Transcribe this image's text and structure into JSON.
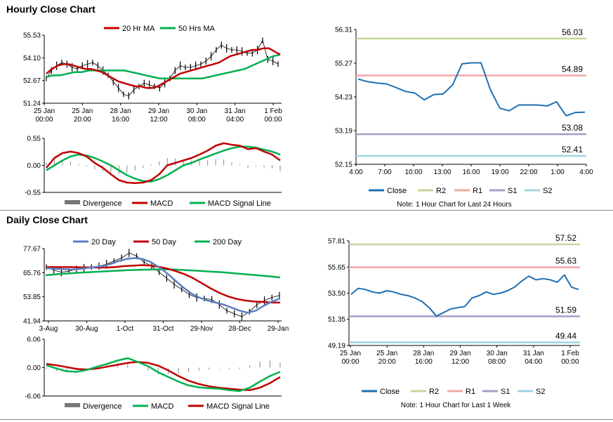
{
  "sections": {
    "hourly_title": "Hourly Close Chart",
    "daily_title": "Daily Close Chart"
  },
  "colors": {
    "ma_short": "#c00000",
    "ma_long": "#00b050",
    "ma_mid": "#c00000",
    "ma_200": "#00b050",
    "ma_20": "#5b7fbf",
    "close": "#1f6fb2",
    "r2": "#c3d69b",
    "r1": "#f2a7a7",
    "s1": "#a89cc8",
    "s2": "#9fd3e0",
    "divergence": "#888888",
    "price": "#000000"
  },
  "chart_data": [
    {
      "id": "hourly_price",
      "type": "line",
      "title": "",
      "legend": [
        "20 Hr MA",
        "50 Hrs MA"
      ],
      "ylim": [
        51.24,
        55.53
      ],
      "yticks": [
        "55.53",
        "54.10",
        "52.67",
        "51.24"
      ],
      "xticks": [
        [
          "25 Jan",
          "00:00"
        ],
        [
          "25 Jan",
          "20:00"
        ],
        [
          "28 Jan",
          "16:00"
        ],
        [
          "29 Jan",
          "12:00"
        ],
        [
          "30 Jan",
          "08:00"
        ],
        [
          "31 Jan",
          "04:00"
        ],
        [
          "1 Feb",
          "00:00"
        ]
      ],
      "series": [
        {
          "name": "Price",
          "values": [
            52.8,
            53.3,
            53.6,
            53.8,
            53.7,
            53.5,
            53.4,
            53.6,
            53.7,
            53.8,
            53.6,
            53.3,
            53.0,
            52.6,
            52.2,
            51.8,
            51.7,
            52.1,
            52.3,
            52.5,
            52.4,
            52.3,
            52.2,
            52.5,
            52.8,
            53.3,
            53.6,
            53.5,
            53.5,
            53.6,
            53.7,
            53.9,
            54.2,
            54.6,
            54.9,
            54.7,
            54.6,
            54.6,
            54.5,
            54.4,
            54.4,
            54.6,
            55.2,
            54.0,
            53.9,
            53.7
          ]
        },
        {
          "name": "20 Hr MA",
          "values": [
            53.1,
            53.4,
            53.6,
            53.7,
            53.7,
            53.6,
            53.5,
            53.4,
            53.4,
            53.3,
            53.2,
            53.0,
            52.8,
            52.6,
            52.5,
            52.4,
            52.3,
            52.3,
            52.2,
            52.2,
            52.3,
            52.5,
            52.7,
            52.9,
            53.1,
            53.2,
            53.3,
            53.4,
            53.5,
            53.6,
            53.7,
            53.8,
            54.0,
            54.2,
            54.3,
            54.4,
            54.5,
            54.6,
            54.6,
            54.7,
            54.7,
            54.5,
            54.3
          ]
        },
        {
          "name": "50 Hrs MA",
          "values": [
            52.9,
            53.0,
            53.0,
            53.1,
            53.2,
            53.2,
            53.3,
            53.3,
            53.3,
            53.3,
            53.3,
            53.3,
            53.2,
            53.1,
            53.0,
            52.9,
            52.8,
            52.8,
            52.8,
            52.8,
            52.8,
            52.8,
            52.8,
            52.9,
            53.0,
            53.1,
            53.2,
            53.3,
            53.4,
            53.6,
            53.8,
            54.0,
            54.2,
            54.3
          ]
        }
      ]
    },
    {
      "id": "hourly_macd",
      "type": "line",
      "legend": [
        "Divergence",
        "MACD",
        "MACD Signal Line"
      ],
      "ylim": [
        -0.55,
        0.55
      ],
      "yticks": [
        "0.55",
        "0.00",
        "-0.55"
      ],
      "series": [
        {
          "name": "MACD",
          "values": [
            -0.05,
            0.15,
            0.25,
            0.28,
            0.25,
            0.18,
            0.05,
            -0.05,
            -0.18,
            -0.3,
            -0.35,
            -0.36,
            -0.35,
            -0.3,
            -0.18,
            0.0,
            0.05,
            0.1,
            0.15,
            0.22,
            0.3,
            0.4,
            0.45,
            0.42,
            0.4,
            0.33,
            0.35,
            0.28,
            0.22,
            0.1
          ]
        },
        {
          "name": "MACD Signal Line",
          "values": [
            -0.1,
            0.0,
            0.1,
            0.18,
            0.22,
            0.2,
            0.15,
            0.08,
            0.0,
            -0.1,
            -0.2,
            -0.27,
            -0.32,
            -0.33,
            -0.28,
            -0.2,
            -0.1,
            0.0,
            0.05,
            0.12,
            0.18,
            0.24,
            0.3,
            0.35,
            0.38,
            0.38,
            0.36,
            0.32,
            0.28,
            0.22
          ]
        },
        {
          "name": "Divergence",
          "values": [
            0.05,
            0.12,
            0.1,
            0.08,
            0.03,
            -0.02,
            -0.08,
            -0.12,
            -0.15,
            -0.18,
            -0.15,
            -0.1,
            -0.05,
            0.02,
            0.08,
            0.15,
            0.14,
            0.12,
            0.1,
            0.1,
            0.1,
            0.12,
            0.12,
            0.06,
            0.02,
            -0.05,
            -0.02,
            -0.04,
            -0.06,
            -0.12
          ]
        }
      ]
    },
    {
      "id": "hourly_levels",
      "type": "line",
      "title": "Note: 1 Hour Chart for Last 24 Hours",
      "ylim": [
        52.15,
        56.31
      ],
      "yticks": [
        "56.31",
        "55.27",
        "54.23",
        "53.19",
        "52.15"
      ],
      "xticks": [
        "4:00",
        "7:00",
        "10:00",
        "13:00",
        "16:00",
        "19:00",
        "22:00",
        "1:00",
        "4:00"
      ],
      "levels": [
        {
          "name": "R2",
          "value": 56.03,
          "label": "56.03"
        },
        {
          "name": "R1",
          "value": 54.89,
          "label": "54.89"
        },
        {
          "name": "S1",
          "value": 53.08,
          "label": "53.08"
        },
        {
          "name": "S2",
          "value": 52.41,
          "label": "52.41"
        }
      ],
      "series": [
        {
          "name": "Close",
          "values": [
            54.78,
            54.7,
            54.66,
            54.63,
            54.52,
            54.4,
            54.35,
            54.14,
            54.3,
            54.32,
            54.6,
            55.25,
            55.28,
            55.28,
            54.45,
            53.88,
            53.8,
            53.98,
            53.98,
            53.98,
            53.95,
            54.08,
            53.65,
            53.75,
            53.76
          ]
        }
      ],
      "legend": [
        "Close",
        "R2",
        "R1",
        "S1",
        "S2"
      ]
    },
    {
      "id": "daily_price",
      "type": "line",
      "legend": [
        "20 Day",
        "50 Day",
        "200 Day"
      ],
      "ylim": [
        41.94,
        77.67
      ],
      "yticks": [
        "77.67",
        "65.76",
        "53.85",
        "41.94"
      ],
      "xticks": [
        "3-Aug",
        "30-Aug",
        "1-Oct",
        "31-Oct",
        "29-Nov",
        "28-Dec",
        "29-Jan"
      ],
      "series": [
        {
          "name": "Price",
          "values": [
            68.5,
            67.0,
            66.0,
            66.5,
            67.5,
            68.0,
            68.5,
            69.0,
            70.0,
            71.5,
            73.0,
            75.5,
            74.0,
            71.0,
            69.0,
            66.0,
            63.0,
            60.0,
            57.5,
            55.0,
            53.5,
            53.0,
            52.5,
            50.0,
            47.0,
            45.5,
            44.0,
            46.5,
            50.0,
            52.0,
            53.5,
            54.5
          ]
        },
        {
          "name": "20 Day",
          "values": [
            68.0,
            67.8,
            67.5,
            67.3,
            67.5,
            68.0,
            68.5,
            69.0,
            70.0,
            71.5,
            72.5,
            73.0,
            72.5,
            71.0,
            68.5,
            65.5,
            62.0,
            58.5,
            55.5,
            53.5,
            52.0,
            51.0,
            50.0,
            48.5,
            47.0,
            46.0,
            47.0,
            49.5,
            51.5,
            53.0
          ]
        },
        {
          "name": "50 Day",
          "values": [
            68.5,
            68.5,
            68.5,
            68.5,
            68.4,
            68.4,
            68.3,
            68.3,
            68.5,
            69.0,
            69.2,
            69.5,
            69.3,
            68.7,
            67.8,
            66.5,
            65.0,
            63.0,
            60.5,
            58.0,
            55.8,
            54.0,
            52.8,
            52.0,
            51.5,
            51.3,
            51.0,
            51.0
          ]
        },
        {
          "name": "200 Day",
          "values": [
            64.5,
            65.0,
            65.4,
            65.8,
            66.1,
            66.4,
            66.7,
            67.0,
            67.2,
            67.3,
            67.4,
            67.3,
            67.0,
            66.7,
            66.3,
            66.0,
            65.5,
            65.0,
            64.5,
            64.0,
            63.4
          ]
        }
      ]
    },
    {
      "id": "daily_macd",
      "type": "line",
      "legend": [
        "Divergence",
        "MACD",
        "MACD Signal Line"
      ],
      "ylim": [
        -6.06,
        6.06
      ],
      "yticks": [
        "6.06",
        "0.00",
        "-6.06"
      ],
      "series": [
        {
          "name": "MACD",
          "values": [
            0.5,
            -0.2,
            -0.8,
            -0.9,
            -0.5,
            0.2,
            0.8,
            1.5,
            2.0,
            1.2,
            0.3,
            -1.0,
            -2.0,
            -3.0,
            -3.8,
            -4.2,
            -4.4,
            -4.5,
            -4.8,
            -5.0,
            -4.3,
            -3.0,
            -1.8,
            -0.9
          ]
        },
        {
          "name": "MACD Signal Line",
          "values": [
            0.8,
            0.5,
            0.1,
            -0.3,
            -0.4,
            -0.2,
            0.2,
            0.6,
            1.0,
            1.2,
            1.0,
            0.4,
            -0.6,
            -1.8,
            -2.8,
            -3.5,
            -4.0,
            -4.3,
            -4.5,
            -4.7,
            -4.8,
            -4.3,
            -3.3,
            -2.0
          ]
        },
        {
          "name": "Divergence",
          "values": [
            -0.3,
            -0.7,
            -0.9,
            -0.6,
            -0.1,
            0.4,
            0.6,
            0.9,
            1.0,
            0.0,
            -0.7,
            -1.4,
            -1.4,
            -1.2,
            -1.0,
            -0.7,
            -0.4,
            -0.2,
            -0.3,
            -0.3,
            0.5,
            1.3,
            1.5,
            1.1
          ]
        }
      ]
    },
    {
      "id": "daily_levels",
      "type": "line",
      "title": "Note: 1 Hour Chart for Last 1 Week",
      "ylim": [
        49.19,
        57.81
      ],
      "yticks": [
        "57.81",
        "55.65",
        "53.50",
        "51.35",
        "49.19"
      ],
      "xticks": [
        [
          "25 Jan",
          "00:00"
        ],
        [
          "25 Jan",
          "20:00"
        ],
        [
          "28 Jan",
          "16:00"
        ],
        [
          "29 Jan",
          "12:00"
        ],
        [
          "30 Jan",
          "08:00"
        ],
        [
          "31 Jan",
          "04:00"
        ],
        [
          "1 Feb",
          "00:00"
        ]
      ],
      "levels": [
        {
          "name": "R2",
          "value": 57.52,
          "label": "57.52"
        },
        {
          "name": "R1",
          "value": 55.63,
          "label": "55.63"
        },
        {
          "name": "S1",
          "value": 51.59,
          "label": "51.59"
        },
        {
          "name": "S2",
          "value": 49.44,
          "label": "49.44"
        }
      ],
      "series": [
        {
          "name": "Close",
          "values": [
            53.4,
            53.9,
            53.8,
            53.6,
            53.5,
            53.7,
            53.6,
            53.4,
            53.3,
            53.1,
            52.8,
            52.3,
            51.6,
            51.9,
            52.2,
            52.3,
            52.4,
            53.1,
            53.3,
            53.6,
            53.4,
            53.5,
            53.7,
            54.0,
            54.5,
            54.9,
            54.6,
            54.7,
            54.6,
            54.4,
            55.0,
            54.0,
            53.8
          ]
        }
      ],
      "legend": [
        "Close",
        "R2",
        "R1",
        "S1",
        "S2"
      ]
    }
  ]
}
